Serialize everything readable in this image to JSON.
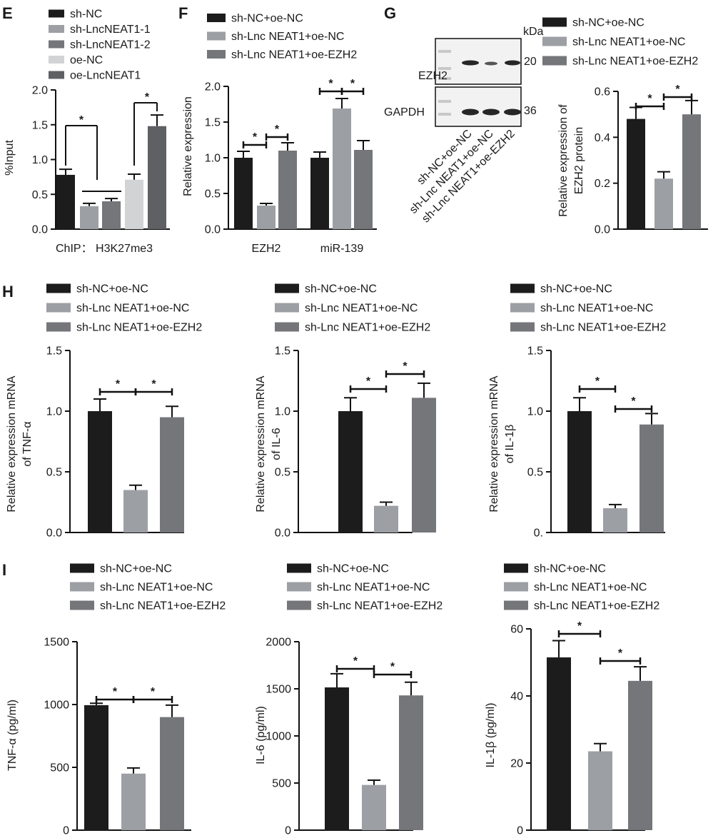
{
  "colors": {
    "c1": "#1c1c1c",
    "c2": "#9c9fa4",
    "c3": "#74767a",
    "c4": "#d2d3d5",
    "c5": "#5e6064",
    "blot_bg": "#f2f2f2",
    "band": "#262626"
  },
  "chart_data": [
    {
      "panel": "E",
      "type": "bar",
      "legend": [
        "sh-NC",
        "sh-LncNEAT1-1",
        "sh-LncNEAT1-2",
        "oe-NC",
        "oe-LncNEAT1"
      ],
      "ylabel": "%Input",
      "xlabel": "ChIP： H3K27me3",
      "ylim": [
        0,
        2.0
      ],
      "yticks": [
        "0.0",
        "0.5",
        "1.0",
        "1.5",
        "2.0"
      ],
      "values": [
        0.78,
        0.33,
        0.4,
        0.71,
        1.48
      ],
      "errors": [
        0.08,
        0.04,
        0.04,
        0.08,
        0.16
      ],
      "sig_marks": [
        "*",
        "*"
      ]
    },
    {
      "panel": "F",
      "type": "bar",
      "legend": [
        "sh-NC+oe-NC",
        "sh-Lnc NEAT1+oe-NC",
        "sh-Lnc NEAT1+oe-EZH2"
      ],
      "ylabel": "Relative expression",
      "categories": [
        "EZH2",
        "miR-139"
      ],
      "ylim": [
        0,
        2.0
      ],
      "yticks": [
        "0.0",
        "0.5",
        "1.0",
        "1.5",
        "2.0"
      ],
      "series": [
        {
          "name": "sh-NC+oe-NC",
          "values": [
            1.0,
            1.0
          ],
          "errors": [
            0.09,
            0.08
          ]
        },
        {
          "name": "sh-Lnc NEAT1+oe-NC",
          "values": [
            0.33,
            1.69
          ],
          "errors": [
            0.03,
            0.14
          ]
        },
        {
          "name": "sh-Lnc NEAT1+oe-EZH2",
          "values": [
            1.1,
            1.11
          ],
          "errors": [
            0.11,
            0.13
          ]
        }
      ],
      "sig_marks": [
        "*",
        "*",
        "*",
        "*"
      ]
    },
    {
      "panel": "G",
      "type": "bar",
      "legend": [
        "sh-NC+oe-NC",
        "sh-Lnc NEAT1+oe-NC",
        "sh-Lnc NEAT1+oe-EZH2"
      ],
      "ylabel_lines": [
        "Relative expression of",
        "EZH2 protein"
      ],
      "ylim": [
        0,
        0.6
      ],
      "yticks": [
        "0.0",
        "0.2",
        "0.4",
        "0.6"
      ],
      "values": [
        0.48,
        0.22,
        0.5
      ],
      "errors": [
        0.05,
        0.03,
        0.06
      ],
      "sig_marks": [
        "*",
        "*"
      ],
      "blot": {
        "unit_label": "kDa",
        "rows": [
          {
            "protein": "EZH2",
            "kda": "20"
          },
          {
            "protein": "GAPDH",
            "kda": "36"
          }
        ],
        "lane_labels": [
          "sh-NC+oe-NC",
          "sh-Lnc NEAT1+oe-NC",
          "sh-Lnc NEAT1+oe-EZH2"
        ]
      }
    },
    {
      "panel": "H",
      "type": "bar",
      "legend": [
        "sh-NC+oe-NC",
        "sh-Lnc NEAT1+oe-NC",
        "sh-Lnc NEAT1+oe-EZH2"
      ],
      "ylabel_lines": [
        "Relative expression mRNA",
        "of TNF-α"
      ],
      "ylim": [
        0,
        1.5
      ],
      "yticks": [
        "0.0",
        "0.5",
        "1.0",
        "1.5"
      ],
      "values": [
        1.0,
        0.35,
        0.95
      ],
      "errors": [
        0.1,
        0.04,
        0.09
      ],
      "sig_marks": [
        "*",
        "*"
      ]
    },
    {
      "panel": "",
      "type": "bar",
      "legend": [
        "sh-NC+oe-NC",
        "sh-Lnc NEAT1+oe-NC",
        "sh-Lnc NEAT1+oe-EZH2"
      ],
      "ylabel_lines": [
        "Relative expression mRNA",
        "of IL-6"
      ],
      "ylim": [
        0,
        1.5
      ],
      "yticks": [
        "0.0",
        "0.5",
        "1.0",
        "1.5"
      ],
      "values": [
        1.0,
        0.22,
        1.11
      ],
      "errors": [
        0.11,
        0.03,
        0.12
      ],
      "sig_marks": [
        "*",
        "*"
      ]
    },
    {
      "panel": "",
      "type": "bar",
      "legend": [
        "sh-NC+oe-NC",
        "sh-Lnc NEAT1+oe-NC",
        "sh-Lnc NEAT1+oe-EZH2"
      ],
      "ylabel_lines": [
        "Relative expression mRNA",
        "of IL-1β"
      ],
      "ylim": [
        0,
        1.5
      ],
      "yticks": [
        "0.",
        "0.5",
        "1.0",
        "1.5"
      ],
      "values": [
        1.0,
        0.2,
        0.89
      ],
      "errors": [
        0.11,
        0.03,
        0.09
      ],
      "sig_marks": [
        "*",
        "*"
      ]
    },
    {
      "panel": "I",
      "type": "bar",
      "legend": [
        "sh-NC+oe-NC",
        "sh-Lnc NEAT1+oe-NC",
        "sh-Lnc NEAT1+oe-EZH2"
      ],
      "ylabel": "TNF-α (pg/ml)",
      "ylim": [
        0,
        1500
      ],
      "yticks": [
        "0",
        "500",
        "1000",
        "1500"
      ],
      "values": [
        995,
        450,
        900
      ],
      "errors": [
        15,
        45,
        95
      ],
      "sig_marks": [
        "*",
        "*"
      ]
    },
    {
      "panel": "",
      "type": "bar",
      "legend": [
        "sh-NC+oe-NC",
        "sh-Lnc NEAT1+oe-NC",
        "sh-Lnc NEAT1+oe-EZH2"
      ],
      "ylabel": "IL-6 (pg/ml)",
      "ylim": [
        0,
        2000
      ],
      "yticks": [
        "0",
        "500",
        "1000",
        "1500",
        "2000"
      ],
      "values": [
        1515,
        480,
        1430
      ],
      "errors": [
        145,
        50,
        140
      ],
      "sig_marks": [
        "*",
        "*"
      ]
    },
    {
      "panel": "",
      "type": "bar",
      "legend": [
        "sh-NC+oe-NC",
        "sh-Lnc NEAT1+oe-NC",
        "sh-Lnc NEAT1+oe-EZH2"
      ],
      "ylabel": "IL-1β (pg/ml)",
      "ylim": [
        0,
        60
      ],
      "yticks": [
        "0",
        "20",
        "40",
        "60"
      ],
      "values": [
        51.5,
        23.5,
        44.5
      ],
      "errors": [
        5.0,
        2.3,
        4.2
      ],
      "sig_marks": [
        "*",
        "*"
      ]
    }
  ]
}
